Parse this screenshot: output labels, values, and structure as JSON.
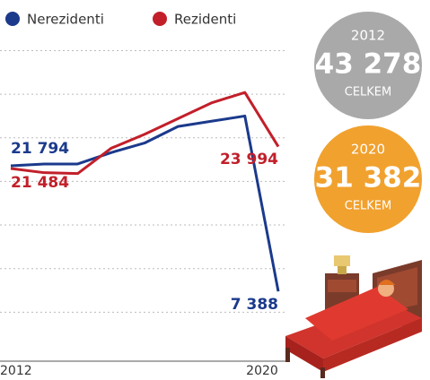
{
  "chart_data": {
    "type": "line",
    "categories": [
      "2012",
      null,
      null,
      null,
      null,
      null,
      null,
      null,
      "2020"
    ],
    "series": [
      {
        "name": "Nerezidenti",
        "color": "#1b3a8c",
        "values": [
          21794,
          22000,
          22000,
          23300,
          24400,
          26300,
          26900,
          27500,
          7388
        ],
        "value_labels": [
          "21 794",
          null,
          null,
          null,
          null,
          null,
          null,
          null,
          "7 388"
        ]
      },
      {
        "name": "Rezidenti",
        "color": "#c21f2a",
        "values": [
          21484,
          21000,
          20900,
          23800,
          25400,
          27200,
          29000,
          30200,
          23994
        ],
        "value_labels": [
          "21 484",
          null,
          null,
          null,
          null,
          null,
          null,
          null,
          "23 994"
        ]
      }
    ],
    "ylim": [
      0,
      37000
    ],
    "yticks": [
      5000,
      10000,
      15000,
      20000,
      25000,
      30000,
      35000
    ],
    "grid": true,
    "totals": [
      {
        "year": "2012",
        "value": 43278,
        "label": "43 278",
        "caption": "CELKEM",
        "color": "#a9a9a9"
      },
      {
        "year": "2020",
        "value": 31382,
        "label": "31 382",
        "caption": "CELKEM",
        "color": "#f1a12e"
      }
    ]
  }
}
